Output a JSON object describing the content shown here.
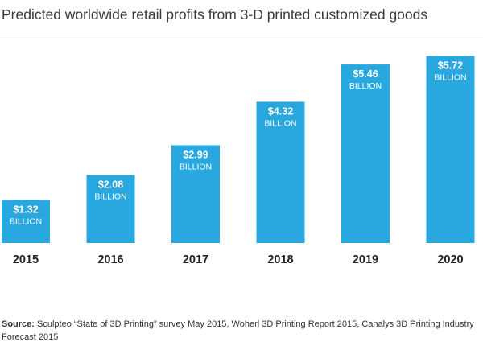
{
  "chart_data": {
    "type": "bar",
    "title": "Predicted worldwide retail profits from 3-D printed customized goods",
    "categories": [
      "2015",
      "2016",
      "2017",
      "2018",
      "2019",
      "2020"
    ],
    "values": [
      1.32,
      2.08,
      2.99,
      4.32,
      5.46,
      5.72
    ],
    "data_labels": [
      "$1.32",
      "$2.08",
      "$2.99",
      "$4.32",
      "$5.46",
      "$5.72"
    ],
    "data_label_unit": "BILLION",
    "xlabel": "",
    "ylabel": "",
    "ylim": [
      0,
      6.2
    ],
    "grid": false,
    "bar_color": "#29a8e0",
    "label_color": "#ffffff",
    "tick_color": "#222222"
  },
  "source": {
    "label": "Source:",
    "text": "Sculpteo “State of 3D Printing” survey May 2015, Woherl 3D Printing Report 2015, Canalys 3D Printing Industry Forecast 2015"
  }
}
